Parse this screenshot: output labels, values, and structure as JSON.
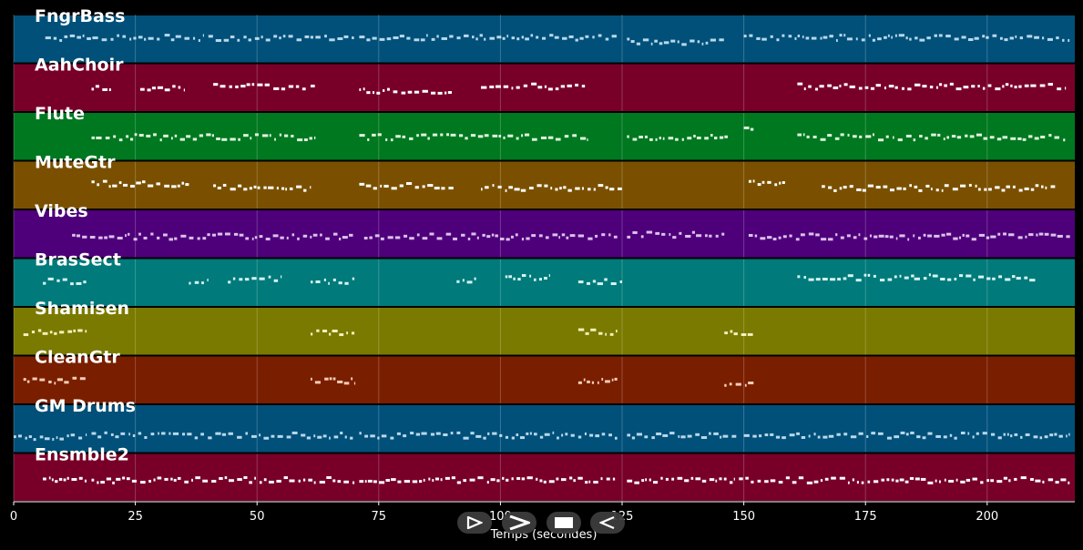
{
  "chart_data": {
    "type": "piano-roll",
    "xlabel": "Temps (secondes)",
    "xlim": [
      0,
      218
    ],
    "x_ticks": [
      0,
      25,
      50,
      75,
      100,
      125,
      150,
      175,
      200
    ],
    "grid": true,
    "tracks": [
      {
        "name": "FngrBass",
        "color": "#00507a",
        "note_color": "#b9d8ea",
        "segments": [
          [
            6.5,
            30,
            0.45
          ],
          [
            31,
            39,
            0.45
          ],
          [
            40,
            70,
            0.45
          ],
          [
            71,
            124,
            0.45
          ],
          [
            126,
            146,
            0.55
          ],
          [
            150,
            217,
            0.45
          ]
        ]
      },
      {
        "name": "AahChoir",
        "color": "#780028",
        "note_color": "#ffffff",
        "segments": [
          [
            16,
            20,
            0.5
          ],
          [
            26,
            35,
            0.5
          ],
          [
            41,
            60,
            0.45
          ],
          [
            61,
            62.5,
            0.45
          ],
          [
            71,
            90,
            0.55
          ],
          [
            96,
            118,
            0.45
          ],
          [
            161,
            216,
            0.45
          ]
        ]
      },
      {
        "name": "Flute",
        "color": "#00781f",
        "note_color": "#dff5df",
        "segments": [
          [
            16,
            62,
            0.5
          ],
          [
            71,
            118,
            0.5
          ],
          [
            126,
            147,
            0.5
          ],
          [
            150,
            152,
            0.3
          ],
          [
            161,
            216,
            0.5
          ]
        ]
      },
      {
        "name": "MuteGtr",
        "color": "#7a5000",
        "note_color": "#ffffff",
        "segments": [
          [
            16,
            36,
            0.45
          ],
          [
            41,
            61,
            0.55
          ],
          [
            71,
            91,
            0.5
          ],
          [
            96,
            125,
            0.55
          ],
          [
            151,
            159,
            0.4
          ],
          [
            166,
            214,
            0.55
          ]
        ]
      },
      {
        "name": "Vibes",
        "color": "#4e007a",
        "note_color": "#d9c2ec",
        "segments": [
          [
            12,
            70,
            0.55
          ],
          [
            72,
            124,
            0.55
          ],
          [
            126,
            146,
            0.5
          ],
          [
            151,
            217,
            0.55
          ]
        ]
      },
      {
        "name": "BrasSect",
        "color": "#007a7a",
        "note_color": "#d8f4f4",
        "segments": [
          [
            6,
            15,
            0.45
          ],
          [
            36,
            40,
            0.45
          ],
          [
            44,
            55,
            0.4
          ],
          [
            61,
            70,
            0.45
          ],
          [
            91,
            95,
            0.45
          ],
          [
            101,
            110,
            0.35
          ],
          [
            116,
            125,
            0.45
          ],
          [
            161,
            185,
            0.35
          ],
          [
            185,
            210,
            0.35
          ]
        ]
      },
      {
        "name": "Shamisen",
        "color": "#7a7a00",
        "note_color": "#f1f1bb",
        "segments": [
          [
            2,
            15,
            0.5
          ],
          [
            61,
            70,
            0.5
          ],
          [
            116,
            124,
            0.5
          ],
          [
            146,
            152,
            0.55
          ]
        ]
      },
      {
        "name": "CleanGtr",
        "color": "#7a1e00",
        "note_color": "#f6cdb7",
        "segments": [
          [
            2,
            15,
            0.5
          ],
          [
            61,
            70,
            0.5
          ],
          [
            116,
            124,
            0.5
          ],
          [
            146,
            152,
            0.55
          ]
        ]
      },
      {
        "name": "GM Drums",
        "color": "#00507a",
        "note_color": "#b9d8ea",
        "segments": [
          [
            0,
            15,
            0.7
          ],
          [
            16,
            70,
            0.65
          ],
          [
            71,
            124,
            0.65
          ],
          [
            126,
            149,
            0.65
          ],
          [
            150,
            217,
            0.65
          ]
        ]
      },
      {
        "name": "Ensmble2",
        "color": "#780028",
        "note_color": "#ffffff",
        "segments": [
          [
            6,
            15,
            0.55
          ],
          [
            16,
            70,
            0.55
          ],
          [
            71,
            124,
            0.55
          ],
          [
            126,
            148,
            0.55
          ],
          [
            149,
            217,
            0.55
          ]
        ]
      }
    ]
  },
  "controls": {
    "icons": [
      "play-icon",
      "forward-icon",
      "stop-icon",
      "rewind-icon"
    ]
  }
}
